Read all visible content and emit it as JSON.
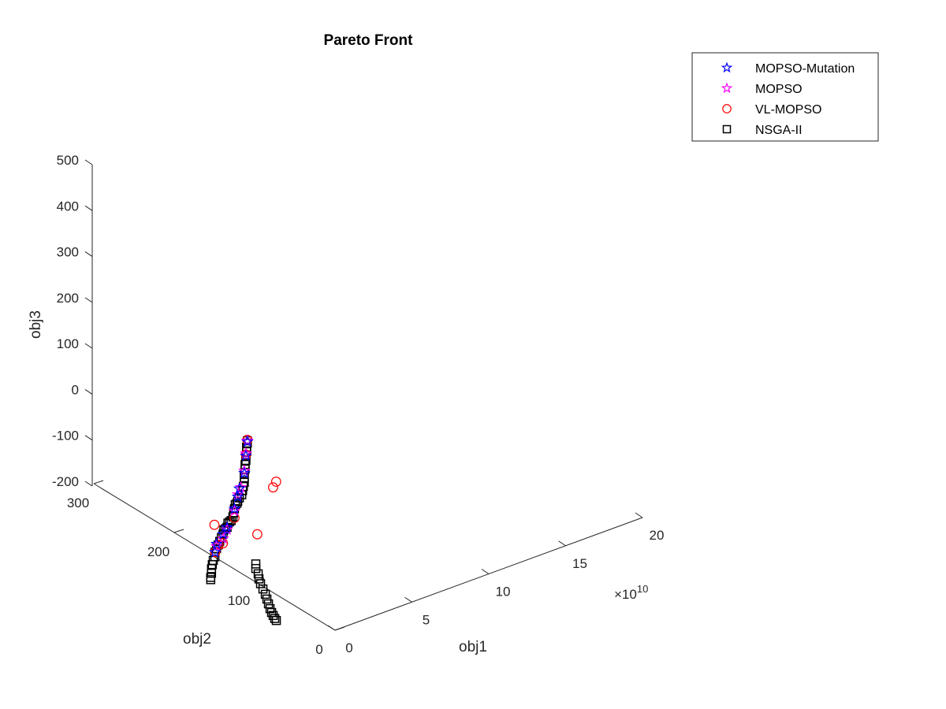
{
  "chart_data": {
    "type": "scatter",
    "title": "Pareto Front",
    "xlabel": "obj1",
    "ylabel": "obj2",
    "zlabel": "obj3",
    "x_multiplier": "×10",
    "x_multiplier_exp": "10",
    "xlim": [
      0,
      20
    ],
    "ylim": [
      0,
      300
    ],
    "zlim": [
      -200,
      500
    ],
    "xticks": [
      0,
      5,
      10,
      15,
      20
    ],
    "yticks": [
      0,
      100,
      200,
      300
    ],
    "zticks": [
      -200,
      -100,
      0,
      100,
      200,
      300,
      400,
      500
    ],
    "legend_position": "top-right",
    "grid": false,
    "series": [
      {
        "name": "MOPSO-Mutation",
        "marker": "pentagram",
        "color": "#0000ff",
        "points": [
          [
            0.05,
            110,
            93
          ],
          [
            0.06,
            112,
            60
          ],
          [
            0.06,
            114,
            20
          ],
          [
            0.05,
            120,
            -20
          ],
          [
            0.05,
            122,
            -40
          ],
          [
            0.05,
            126,
            -70
          ],
          [
            0.04,
            135,
            -120
          ],
          [
            0.04,
            140,
            -140
          ],
          [
            0.03,
            148,
            -170
          ],
          [
            0.03,
            150,
            -190
          ]
        ]
      },
      {
        "name": "MOPSO",
        "marker": "pentagram",
        "color": "#ff00ff",
        "points": [
          [
            0.05,
            110,
            95
          ],
          [
            0.06,
            112,
            65
          ],
          [
            0.06,
            114,
            25
          ],
          [
            0.05,
            118,
            -15
          ],
          [
            0.05,
            122,
            -35
          ],
          [
            0.05,
            126,
            -75
          ],
          [
            0.04,
            135,
            -125
          ],
          [
            0.04,
            140,
            -150
          ],
          [
            0.03,
            148,
            -175
          ]
        ]
      },
      {
        "name": "VL-MOPSO",
        "marker": "circle",
        "color": "#ff0000",
        "points": [
          [
            0.05,
            110,
            97
          ],
          [
            0.06,
            112,
            63
          ],
          [
            1.2,
            100,
            -10
          ],
          [
            1.4,
            100,
            0
          ],
          [
            0.8,
            112,
            -120
          ],
          [
            0.03,
            140,
            -160
          ],
          [
            0.0,
            150,
            -130
          ],
          [
            0.05,
            150,
            -190
          ],
          [
            0.06,
            146,
            -170
          ],
          [
            0.05,
            126,
            -90
          ]
        ]
      },
      {
        "name": "NSGA-II",
        "marker": "square",
        "color": "#000000",
        "points": [
          [
            0.05,
            110,
            95
          ],
          [
            0.05,
            110,
            90
          ],
          [
            0.05,
            111,
            80
          ],
          [
            0.06,
            111,
            70
          ],
          [
            0.06,
            112,
            60
          ],
          [
            0.06,
            112,
            50
          ],
          [
            0.06,
            113,
            40
          ],
          [
            0.06,
            113,
            30
          ],
          [
            0.06,
            114,
            20
          ],
          [
            0.06,
            114,
            10
          ],
          [
            0.06,
            114,
            0
          ],
          [
            0.05,
            115,
            -10
          ],
          [
            0.05,
            116,
            -20
          ],
          [
            0.05,
            117,
            -30
          ],
          [
            0.05,
            120,
            -40
          ],
          [
            0.05,
            122,
            -50
          ],
          [
            0.05,
            123,
            -55
          ],
          [
            0.05,
            125,
            -60
          ],
          [
            0.05,
            126,
            -70
          ],
          [
            0.05,
            127,
            -80
          ],
          [
            0.05,
            128,
            -90
          ],
          [
            0.04,
            130,
            -100
          ],
          [
            0.04,
            132,
            -105
          ],
          [
            0.04,
            134,
            -110
          ],
          [
            0.04,
            135,
            -120
          ],
          [
            0.04,
            137,
            -125
          ],
          [
            0.04,
            139,
            -130
          ],
          [
            0.04,
            140,
            -140
          ],
          [
            0.03,
            142,
            -150
          ],
          [
            0.03,
            144,
            -160
          ],
          [
            0.03,
            146,
            -170
          ],
          [
            0.03,
            148,
            -180
          ],
          [
            0.03,
            150,
            -190
          ],
          [
            0.03,
            150,
            -200
          ],
          [
            0.03,
            152,
            -210
          ],
          [
            0.02,
            153,
            -220
          ],
          [
            0.02,
            154,
            -230
          ],
          [
            0.02,
            154,
            -240
          ],
          [
            0.02,
            155,
            -250
          ],
          [
            0.02,
            155,
            -255
          ],
          [
            0.6,
            110,
            -180
          ],
          [
            0.6,
            110,
            -190
          ],
          [
            0.65,
            108,
            -200
          ],
          [
            0.65,
            107,
            -210
          ],
          [
            0.7,
            106,
            -220
          ],
          [
            0.75,
            104,
            -230
          ],
          [
            0.8,
            102,
            -240
          ],
          [
            0.85,
            101,
            -250
          ],
          [
            0.9,
            100,
            -260
          ],
          [
            0.95,
            99,
            -270
          ],
          [
            1.0,
            98,
            -278
          ],
          [
            1.05,
            97,
            -284
          ],
          [
            1.1,
            96,
            -290
          ],
          [
            1.15,
            95,
            -294
          ]
        ]
      }
    ]
  }
}
